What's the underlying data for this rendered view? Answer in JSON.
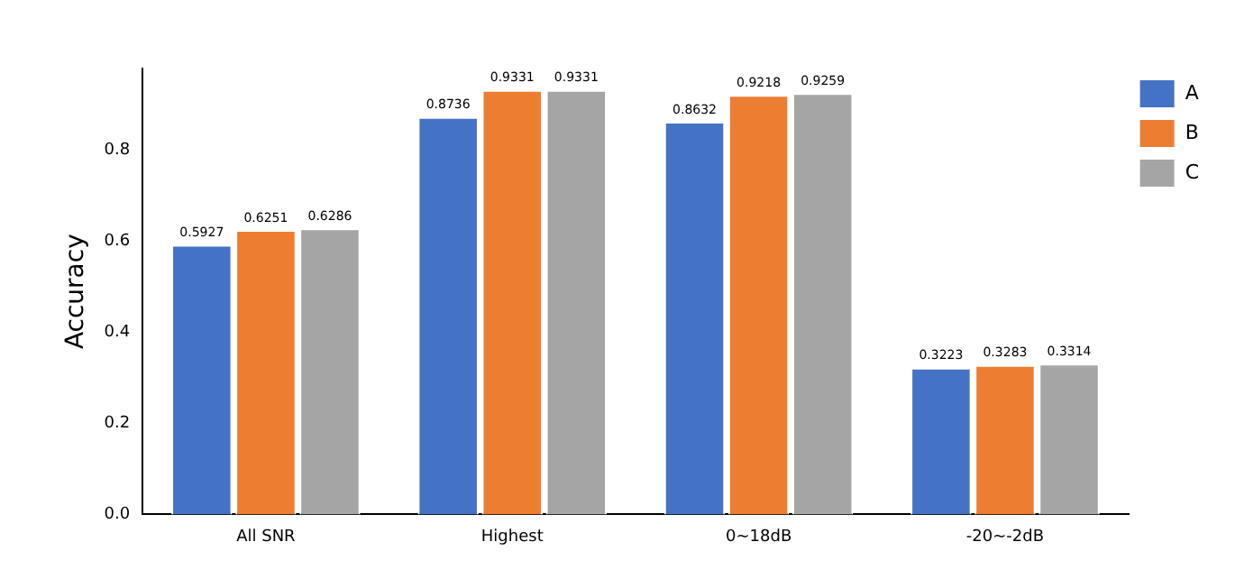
{
  "chart_data": {
    "type": "bar",
    "ylabel": "Accuracy",
    "categories": [
      "All SNR",
      "Highest",
      "0~18dB",
      "-20~-2dB"
    ],
    "series": [
      {
        "name": "A",
        "color": "#4472c4",
        "values": [
          0.5927,
          0.8736,
          0.8632,
          0.3223
        ]
      },
      {
        "name": "B",
        "color": "#ed7d31",
        "values": [
          0.6251,
          0.9331,
          0.9218,
          0.3283
        ]
      },
      {
        "name": "C",
        "color": "#a5a5a5",
        "values": [
          0.6286,
          0.9331,
          0.9259,
          0.3314
        ]
      }
    ],
    "ylim": [
      0,
      0.98
    ],
    "yticks": [
      {
        "value": 0,
        "label": "0.0"
      },
      0.2,
      0.4,
      0.6,
      0.8
    ],
    "data_labels": true,
    "legend": "top right",
    "grid": false
  }
}
